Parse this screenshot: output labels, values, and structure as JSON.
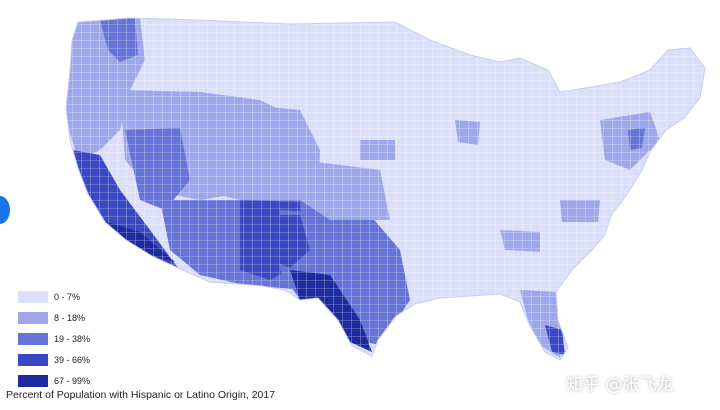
{
  "legend": {
    "items": [
      {
        "label": "0 - 7%",
        "color": "#dcdff9"
      },
      {
        "label": "8 - 18%",
        "color": "#9ea7ea"
      },
      {
        "label": "19 - 38%",
        "color": "#6674d8"
      },
      {
        "label": "39 - 66%",
        "color": "#3a48c4"
      },
      {
        "label": "67 - 99%",
        "color": "#1c2a9e"
      }
    ]
  },
  "caption": "Percent of Population with Hispanic or Latino Origin, 2017",
  "watermark": "知乎 @张飞龙",
  "colors": {
    "base": "#dcdff9",
    "border": "#ffffff",
    "accent_dot": "#1a73e8"
  }
}
